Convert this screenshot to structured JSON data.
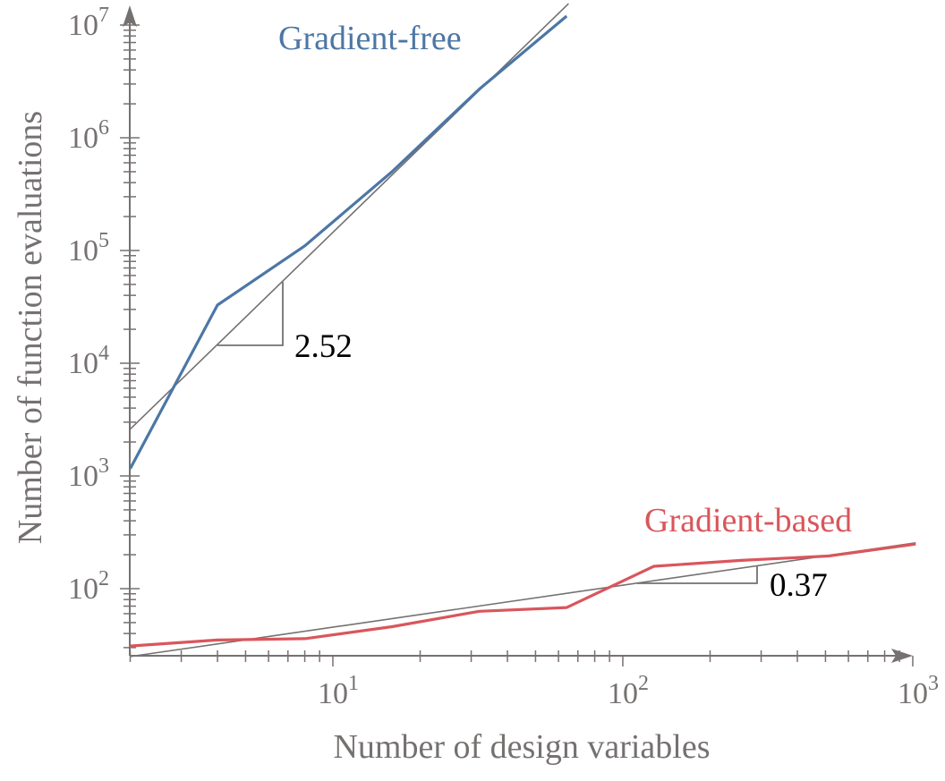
{
  "chart_data": {
    "type": "line",
    "title": "",
    "xlabel": "Number of design variables",
    "ylabel": "Number of function evaluations",
    "xscale": "log",
    "yscale": "log",
    "xlim": [
      2,
      1024
    ],
    "ylim": [
      25,
      14000000
    ],
    "grid": false,
    "legend": "inline labels",
    "x_ticks": [
      {
        "value": 10,
        "base": "10",
        "exp": "1"
      },
      {
        "value": 100,
        "base": "10",
        "exp": "2"
      },
      {
        "value": 1000,
        "base": "10",
        "exp": "3"
      }
    ],
    "y_ticks": [
      {
        "value": 100,
        "base": "10",
        "exp": "2"
      },
      {
        "value": 1000,
        "base": "10",
        "exp": "3"
      },
      {
        "value": 10000,
        "base": "10",
        "exp": "4"
      },
      {
        "value": 100000,
        "base": "10",
        "exp": "5"
      },
      {
        "value": 1000000,
        "base": "10",
        "exp": "6"
      },
      {
        "value": 10000000,
        "base": "10",
        "exp": "7"
      }
    ],
    "x": [
      2,
      4,
      8,
      16,
      32,
      64,
      128,
      256,
      512,
      1024
    ],
    "series": [
      {
        "name": "Gradient-free",
        "color": "#4c77a5",
        "x": [
          2,
          4,
          8,
          16,
          32,
          64
        ],
        "values": [
          1160,
          32800,
          110000,
          500000,
          2700000,
          12000000
        ],
        "fit_slope": "2.52",
        "fit_line": {
          "x": [
            2,
            65
          ],
          "y": [
            2600,
            15500000
          ]
        }
      },
      {
        "name": "Gradient-based",
        "color": "#d9565c",
        "x": [
          2,
          4,
          8,
          16,
          32,
          64,
          128,
          256,
          512,
          1024
        ],
        "values": [
          31,
          35,
          36,
          46,
          63,
          68,
          158,
          178,
          195,
          249
        ],
        "fit_slope": "0.37",
        "fit_line": {
          "x": [
            2,
            1024
          ],
          "y": [
            25,
            255
          ]
        }
      }
    ],
    "annotations": [
      {
        "text": "Gradient-free",
        "color": "#4c77a5"
      },
      {
        "text": "Gradient-based",
        "color": "#d9565c"
      },
      {
        "text": "2.52",
        "color": "#000000"
      },
      {
        "text": "0.37",
        "color": "#000000"
      }
    ]
  },
  "colors": {
    "axis": "#767171",
    "fit_line": "#767171",
    "text": "#767171"
  }
}
